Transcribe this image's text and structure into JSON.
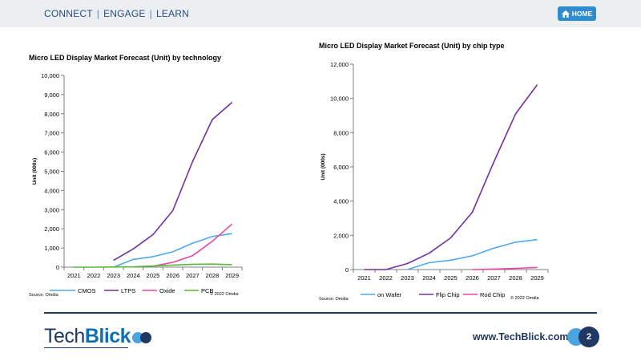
{
  "nav": {
    "items": [
      "CONNECT",
      "ENGAGE",
      "LEARN"
    ],
    "home_label": "HOME"
  },
  "footer": {
    "website": "www.TechBlick.com",
    "page_number": "2",
    "logo_part1": "Tech",
    "logo_part2": "Blick"
  },
  "colors": {
    "cmos": "#4ea9ef",
    "ltps": "#7030a0",
    "oxide": "#ee44aa",
    "pcb": "#5cb83a",
    "on_wafer": "#4ea9ef",
    "flip_chip": "#7030a0",
    "rod_chip": "#ee44aa",
    "brand": "#1f3864",
    "accent": "#2e8ccf"
  },
  "chart_data": [
    {
      "type": "line",
      "title": "Micro LED Display Market Forecast (Unit) by technology",
      "ylabel": "Unit (000s)",
      "xlabel": "",
      "x": [
        "2021",
        "2022",
        "2023",
        "2024",
        "2025",
        "2026",
        "2027",
        "2028",
        "2029"
      ],
      "ylim": [
        0,
        10000
      ],
      "yticks": [
        "0",
        "1,000",
        "2,000",
        "3,000",
        "4,000",
        "5,000",
        "6,000",
        "7,000",
        "8,000",
        "9,000",
        "10,000"
      ],
      "series": [
        {
          "name": "CMOS",
          "values": [
            null,
            null,
            0,
            400,
            550,
            800,
            1250,
            1600,
            1750
          ]
        },
        {
          "name": "LTPS",
          "values": [
            null,
            null,
            350,
            950,
            1700,
            2950,
            5500,
            7700,
            8600
          ]
        },
        {
          "name": "Oxide",
          "values": [
            null,
            null,
            null,
            null,
            50,
            250,
            600,
            1350,
            2250
          ]
        },
        {
          "name": "PCB",
          "values": [
            0,
            0,
            10,
            20,
            60,
            110,
            150,
            160,
            130
          ]
        }
      ],
      "legend": "bottom",
      "source": "Source: Omdia",
      "copyright": "© 2022 Omdia",
      "grid": false
    },
    {
      "type": "line",
      "title": "Micro LED Display Market Forecast (Unit) by chip type",
      "ylabel": "Unit (000s)",
      "xlabel": "",
      "x": [
        "2021",
        "2022",
        "2023",
        "2024",
        "2025",
        "2026",
        "2027",
        "2028",
        "2029"
      ],
      "ylim": [
        0,
        12000
      ],
      "yticks": [
        "0",
        "2,000",
        "4,000",
        "6,000",
        "8,000",
        "10,000",
        "12,000"
      ],
      "series": [
        {
          "name": "on Wafer",
          "values": [
            null,
            null,
            0,
            400,
            550,
            800,
            1250,
            1600,
            1750
          ]
        },
        {
          "name": "Flip Chip",
          "values": [
            0,
            0,
            350,
            950,
            1850,
            3350,
            6300,
            9100,
            10800
          ]
        },
        {
          "name": "Rod Chip",
          "values": [
            null,
            null,
            null,
            null,
            null,
            0,
            30,
            70,
            120
          ]
        }
      ],
      "legend": "bottom",
      "source": "Source: Omdia",
      "copyright": "© 2022 Omdia",
      "grid": false
    }
  ]
}
